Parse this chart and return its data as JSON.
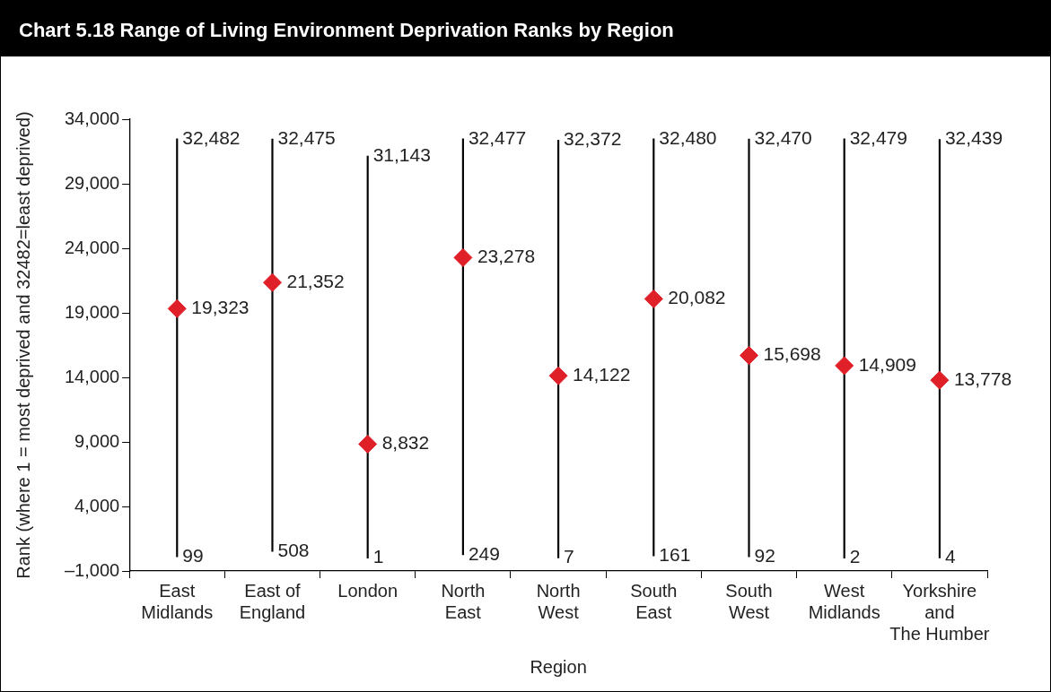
{
  "chart_data": {
    "type": "bar",
    "title": "Chart 5.18  Range of Living Environment Deprivation Ranks by Region",
    "xlabel": "Region",
    "ylabel": "Rank (where 1 = most deprived and 32482=least deprived)",
    "categories": [
      "East Midlands",
      "East of England",
      "London",
      "North East",
      "North West",
      "South East",
      "South West",
      "West Midlands",
      "Yorkshire and The Humber"
    ],
    "series": [
      {
        "color": "#000000",
        "base": [
          99,
          508,
          1,
          249,
          7,
          161,
          92,
          2,
          4
        ],
        "values": [
          32383,
          31967,
          31142,
          32228,
          32365,
          32319,
          32378,
          32477,
          32435
        ]
      },
      {
        "type": "scatter",
        "color": "#e02028",
        "marker": "diamond",
        "values": [
          19323,
          21352,
          8832,
          23278,
          14122,
          20082,
          15698,
          14909,
          13778
        ],
        "value_labels": [
          "19,323",
          "21,352",
          "8,832",
          "23,278",
          "14,122",
          "20,082",
          "15,698",
          "14,909",
          "13,778"
        ]
      }
    ],
    "ylim": [
      -1000,
      34000
    ],
    "yticks": [
      {
        "value": -1000,
        "label": "–1,000"
      },
      {
        "value": 4000,
        "label": "4,000"
      },
      {
        "value": 9000,
        "label": "9,000"
      },
      {
        "value": 14000,
        "label": "14,000"
      },
      {
        "value": 19000,
        "label": "19,000"
      },
      {
        "value": 24000,
        "label": "24,000"
      },
      {
        "value": 29000,
        "label": "29,000"
      },
      {
        "value": 34000,
        "label": "34,000"
      }
    ],
    "annotations": [
      {
        "text": "32,482",
        "x": "East Midlands",
        "y": 32482
      },
      {
        "text": "99",
        "x": "East Midlands",
        "y": 99
      },
      {
        "text": "32,475",
        "x": "East of England",
        "y": 32475
      },
      {
        "text": "508",
        "x": "East of England",
        "y": 508
      },
      {
        "text": "31,143",
        "x": "London",
        "y": 31143
      },
      {
        "text": "1",
        "x": "London",
        "y": 1
      },
      {
        "text": "32,477",
        "x": "North East",
        "y": 32477
      },
      {
        "text": "249",
        "x": "North East",
        "y": 249
      },
      {
        "text": "32,372",
        "x": "North West",
        "y": 32372
      },
      {
        "text": "7",
        "x": "North West",
        "y": 7
      },
      {
        "text": "32,480",
        "x": "South East",
        "y": 32480
      },
      {
        "text": "161",
        "x": "South East",
        "y": 161
      },
      {
        "text": "32,470",
        "x": "South West",
        "y": 32470
      },
      {
        "text": "92",
        "x": "South West",
        "y": 92
      },
      {
        "text": "32,479",
        "x": "West Midlands",
        "y": 32479
      },
      {
        "text": "2",
        "x": "West Midlands",
        "y": 2
      },
      {
        "text": "32,439",
        "x": "Yorkshire and The Humber",
        "y": 32439
      },
      {
        "text": "4",
        "x": "Yorkshire and The Humber",
        "y": 4
      }
    ]
  }
}
